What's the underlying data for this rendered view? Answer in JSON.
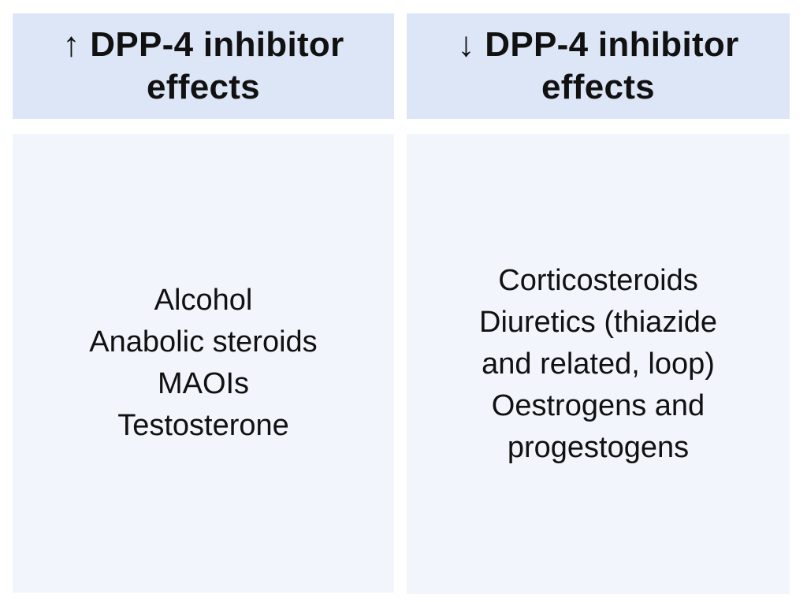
{
  "left_column": {
    "header": {
      "line1": "↑ DPP-4 inhibitor",
      "line2": "effects"
    },
    "items": [
      "Alcohol",
      "Anabolic steroids",
      "MAOIs",
      "Testosterone"
    ]
  },
  "right_column": {
    "header": {
      "line1": "↓ DPP-4 inhibitor",
      "line2": "effects"
    },
    "items": [
      "Corticosteroids",
      "Diuretics (thiazide",
      "and related, loop)",
      "Oestrogens and",
      "progestogens"
    ]
  },
  "colors": {
    "header_background": "#dde6f6",
    "body_background": "#f2f5fc",
    "text": "#111111"
  }
}
